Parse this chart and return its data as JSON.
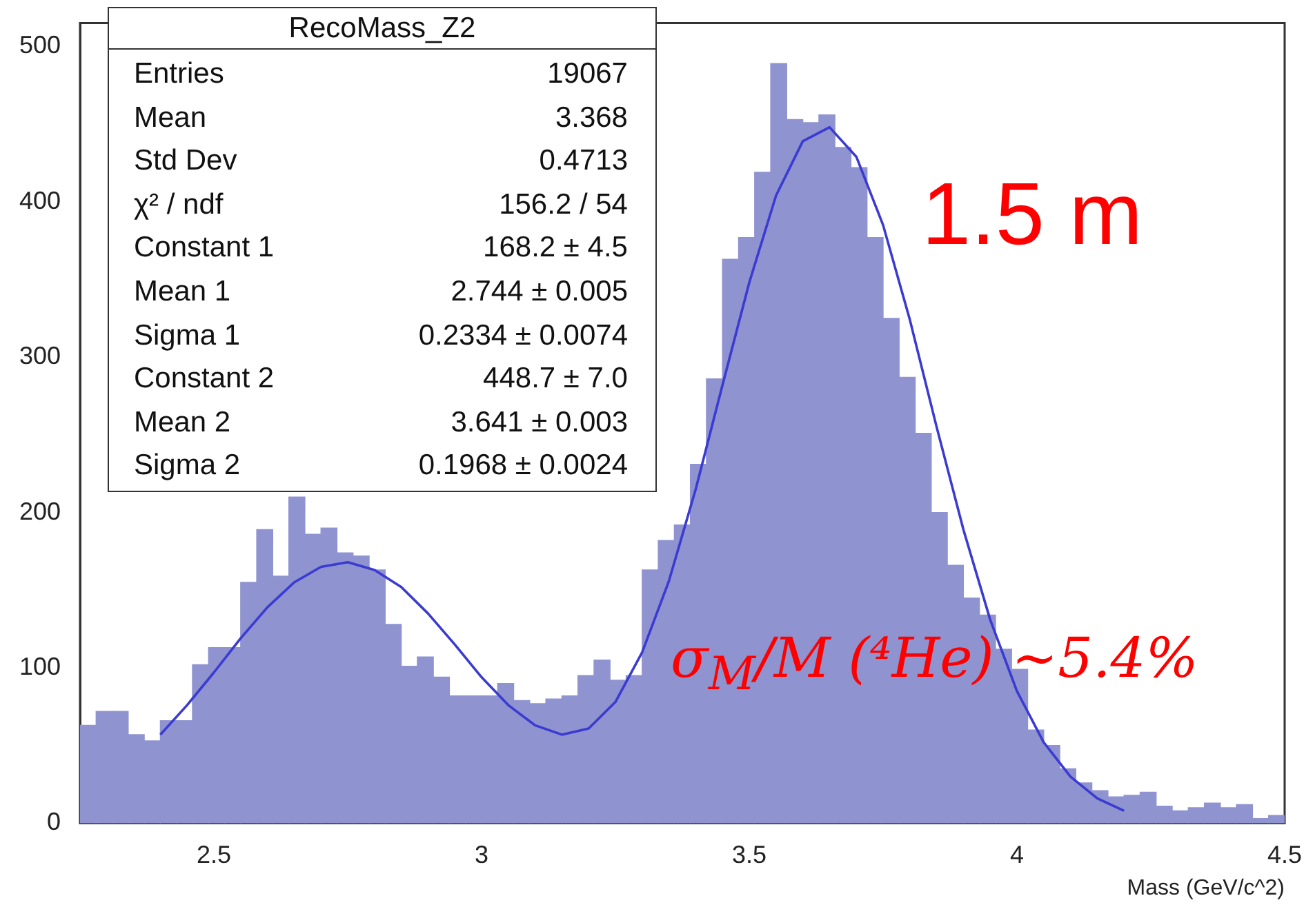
{
  "chart_data": {
    "type": "histogram",
    "bins": [
      2.25,
      2.28,
      2.31,
      2.34,
      2.37,
      2.4,
      2.43,
      2.46,
      2.49,
      2.52,
      2.55,
      2.58,
      2.61,
      2.64,
      2.67,
      2.7,
      2.73,
      2.76,
      2.79,
      2.82,
      2.85,
      2.88,
      2.91,
      2.94,
      2.97,
      3.0,
      3.03,
      3.06,
      3.09,
      3.12,
      3.15,
      3.18,
      3.21,
      3.24,
      3.27,
      3.3,
      3.33,
      3.36,
      3.39,
      3.42,
      3.45,
      3.48,
      3.51,
      3.54,
      3.57,
      3.6,
      3.63,
      3.66,
      3.69,
      3.72,
      3.75,
      3.78,
      3.81,
      3.84,
      3.87,
      3.9,
      3.93,
      3.96,
      3.99,
      4.02,
      4.05,
      4.08,
      4.11,
      4.14,
      4.17,
      4.2,
      4.23,
      4.26,
      4.29,
      4.32,
      4.35,
      4.38,
      4.41,
      4.44,
      4.47,
      4.5
    ],
    "values": [
      63,
      72,
      72,
      57,
      53,
      66,
      66,
      102,
      113,
      113,
      155,
      189,
      159,
      210,
      186,
      190,
      174,
      172,
      163,
      128,
      101,
      107,
      94,
      82,
      82,
      82,
      90,
      79,
      77,
      80,
      82,
      95,
      105,
      92,
      95,
      163,
      182,
      192,
      231,
      286,
      363,
      377,
      419,
      489,
      453,
      451,
      456,
      435,
      422,
      377,
      325,
      287,
      251,
      200,
      166,
      145,
      134,
      112,
      99,
      60,
      50,
      35,
      26,
      21,
      17,
      18,
      20,
      11,
      8,
      10,
      13,
      10,
      12,
      3,
      5
    ],
    "color": "#8f93cf",
    "series": [
      {
        "type": "line",
        "color": "#3b3bd1",
        "x": [
          2.4,
          2.45,
          2.5,
          2.55,
          2.6,
          2.65,
          2.7,
          2.75,
          2.8,
          2.85,
          2.9,
          2.95,
          3.0,
          3.05,
          3.1,
          3.15,
          3.2,
          3.25,
          3.3,
          3.35,
          3.4,
          3.45,
          3.5,
          3.55,
          3.6,
          3.65,
          3.7,
          3.75,
          3.8,
          3.85,
          3.9,
          3.95,
          4.0,
          4.05,
          4.1,
          4.15,
          4.2
        ],
        "values": [
          57,
          76,
          97,
          119,
          139,
          155,
          165,
          168,
          163,
          152,
          135,
          115,
          94,
          76,
          63,
          57,
          61,
          78,
          110,
          156,
          215,
          282,
          348,
          404,
          439,
          448,
          429,
          385,
          324,
          255,
          189,
          131,
          85,
          52,
          30,
          16,
          8
        ]
      }
    ],
    "xlim": [
      2.25,
      4.5
    ],
    "xticks": [
      2.5,
      3,
      3.5,
      4,
      4.5
    ],
    "ylim": [
      0,
      515
    ],
    "yticks": [
      0,
      100,
      200,
      300,
      400,
      500
    ],
    "xlabel": "Mass (GeV/c^2)",
    "marker": "none",
    "annotations": [
      "RecoMass_Z2",
      "Entries\t19067",
      "Mean\t3.368",
      "Std Dev\t0.4713",
      "χ² / ndf\t156.2 / 54",
      "Constant 1\t168.2 ± 4.5",
      "Mean 1\t2.744 ± 0.005",
      "Sigma 1\t0.2334 ± 0.0074",
      "Constant 2\t448.7 ± 7.0",
      "Mean 2\t3.641 ± 0.003",
      "Sigma 2\t0.1968 ± 0.0024",
      "1.5 m",
      "σ$_{M}$/M (⁴He) ~5.4%"
    ]
  }
}
